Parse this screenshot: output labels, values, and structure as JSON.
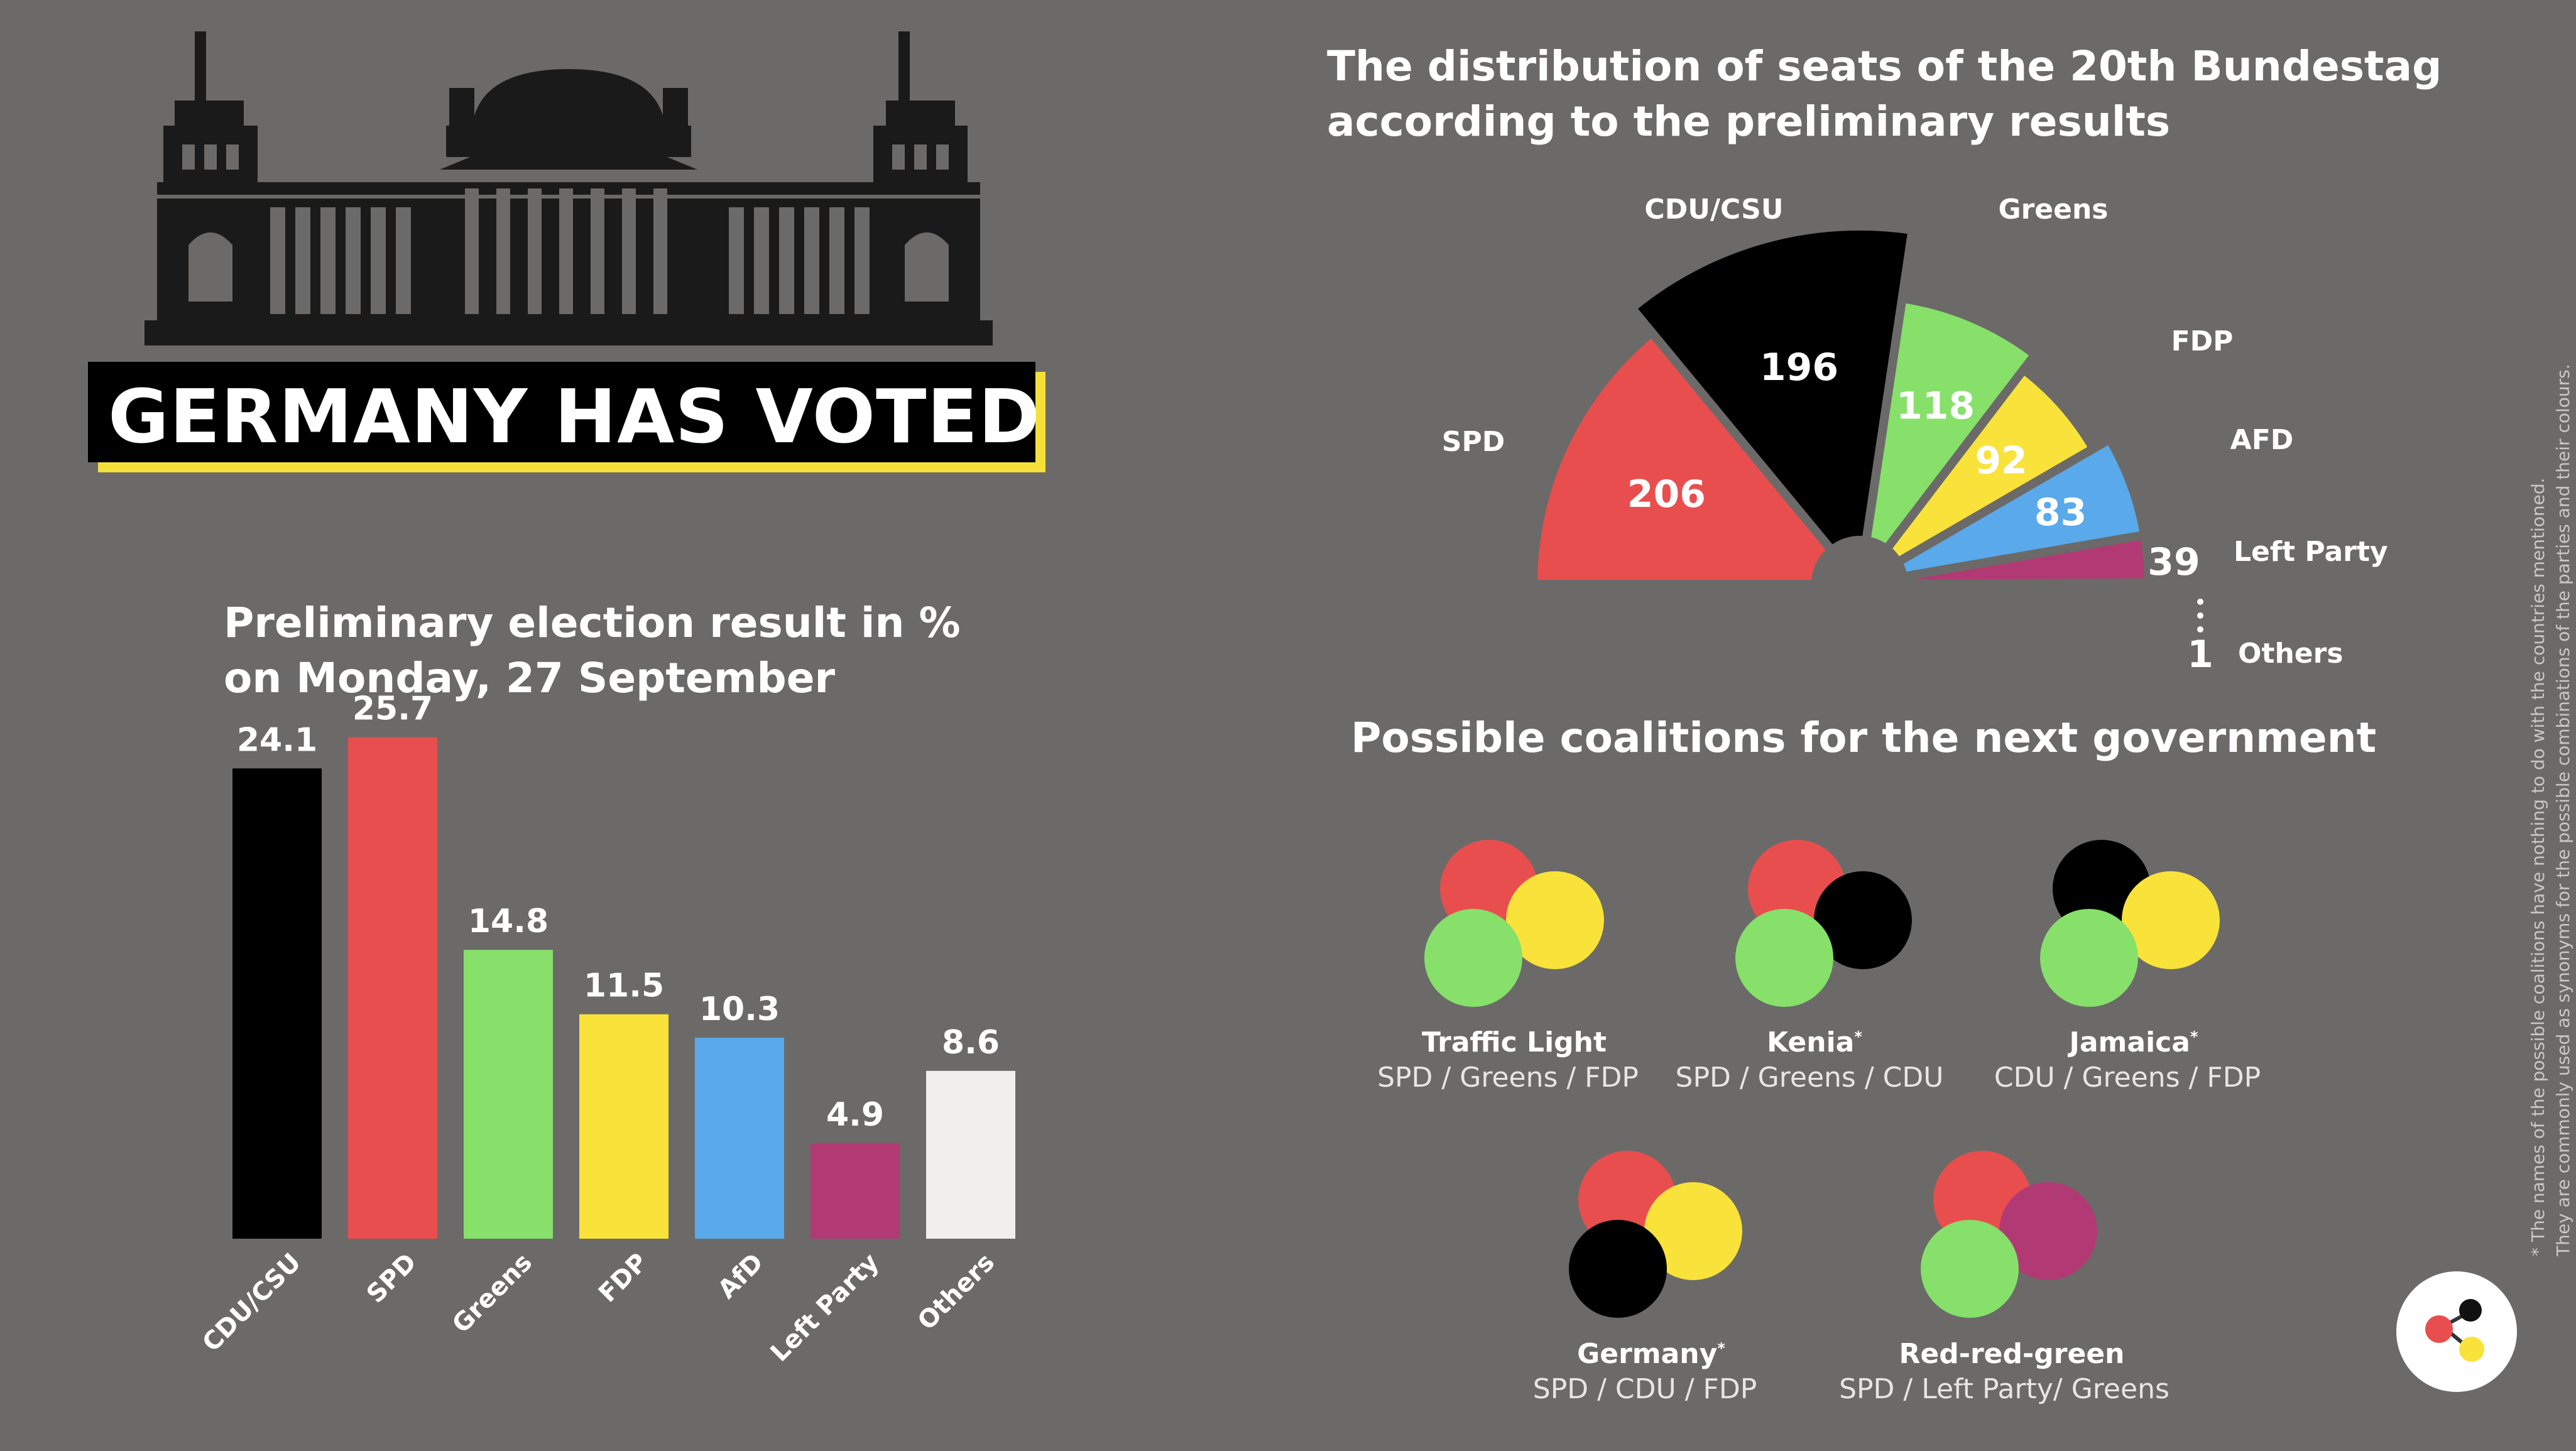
{
  "hero": {
    "title": "GERMANY HAS VOTED"
  },
  "bar_section": {
    "title_line1": "Preliminary election result in %",
    "title_line2": "on Monday, 27 September"
  },
  "seat_section": {
    "title_line1": "The distribution of seats of the 20th Bundestag",
    "title_line2": "according to the preliminary results"
  },
  "coalition_section": {
    "title": "Possible coalitions for the next government",
    "coalitions": [
      {
        "name": "Traffic Light",
        "parties": "SPD / Greens / FDP",
        "asterisk": ""
      },
      {
        "name": "Kenia",
        "parties": "SPD / Greens / CDU",
        "asterisk": "*"
      },
      {
        "name": "Jamaica",
        "parties": "CDU / Greens / FDP",
        "asterisk": "*"
      },
      {
        "name": "Germany",
        "parties": "SPD / CDU / FDP",
        "asterisk": "*"
      },
      {
        "name": "Red-red-green",
        "parties": "SPD / Left Party/ Greens",
        "asterisk": ""
      }
    ]
  },
  "footnote": {
    "line1": "* The names of the possible coalitions have nothing to do with the countries mentioned.",
    "line2": "They are commonly used as synonyms for the possible combinations of the parties and their colours."
  },
  "colors": {
    "background": "#6b6a68",
    "cdu": "#000000",
    "spd": "#e94e4e",
    "greens": "#86e06a",
    "fdp": "#f9e23a",
    "afd": "#5aa9ea",
    "left": "#b13a74",
    "others": "#f0efed",
    "accent": "#f5e03a"
  },
  "icons": {
    "building": "reichstag-building-icon",
    "logo": "dots-logo-icon"
  },
  "chart_data": [
    {
      "type": "bar",
      "title": "Preliminary election result in % on Monday, 27 September",
      "categories": [
        "CDU/CSU",
        "SPD",
        "Greens",
        "FDP",
        "AfD",
        "Left Party",
        "Others"
      ],
      "values": [
        24.1,
        25.7,
        14.8,
        11.5,
        10.3,
        4.9,
        8.6
      ],
      "value_labels": [
        "24.1",
        "25.7",
        "14.8",
        "11.5",
        "10.3",
        "4.9",
        "8.6"
      ],
      "colors": [
        "#000000",
        "#e94e4e",
        "#86e06a",
        "#f9e23a",
        "#5aa9ea",
        "#b13a74",
        "#f0efed"
      ],
      "ylim": [
        0,
        30
      ],
      "grid": false
    },
    {
      "type": "pie",
      "subtype": "parliament-semicircle",
      "title": "The distribution of seats of the 20th Bundestag according to the preliminary results",
      "categories": [
        "SPD",
        "CDU/CSU",
        "Greens",
        "FDP",
        "AFD",
        "Left Party",
        "Others"
      ],
      "values": [
        206,
        196,
        118,
        92,
        83,
        39,
        1
      ],
      "value_labels": [
        "206",
        "196",
        "118",
        "92",
        "83",
        "39",
        "1"
      ],
      "colors": [
        "#e94e4e",
        "#000000",
        "#86e06a",
        "#f9e23a",
        "#5aa9ea",
        "#b13a74",
        "#f0efed"
      ]
    }
  ]
}
